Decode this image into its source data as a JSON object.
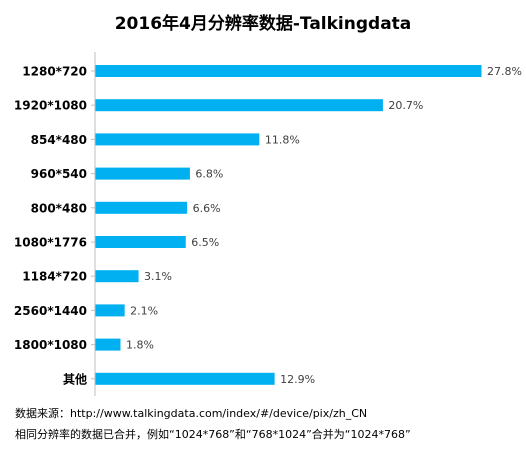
{
  "chart_data": {
    "type": "bar",
    "orientation": "horizontal",
    "title": "2016年4月分辨率数据-Talkingdata",
    "categories": [
      "1280*720",
      "1920*1080",
      "854*480",
      "960*540",
      "800*480",
      "1080*1776",
      "1184*720",
      "2560*1440",
      "1800*1080",
      "其他"
    ],
    "values": [
      27.8,
      20.7,
      11.8,
      6.8,
      6.6,
      6.5,
      3.1,
      2.1,
      1.8,
      12.9
    ],
    "data_labels": [
      "27.8%",
      "20.7%",
      "11.8%",
      "6.8%",
      "6.6%",
      "6.5%",
      "3.1%",
      "2.1%",
      "1.8%",
      "12.9%"
    ],
    "unit": "%",
    "xlabel": "",
    "ylabel": "",
    "xlim": [
      0,
      27.8
    ],
    "grid": false,
    "legend": "none",
    "bar_color": "#00b0f0",
    "axis_color": "#bfbfbf"
  },
  "notes": {
    "source": "数据来源：http://www.talkingdata.com/index/#/device/pix/zh_CN",
    "merge": "相同分辨率的数据已合并，例如“1024*768”和“768*1024”合并为“1024*768”"
  }
}
